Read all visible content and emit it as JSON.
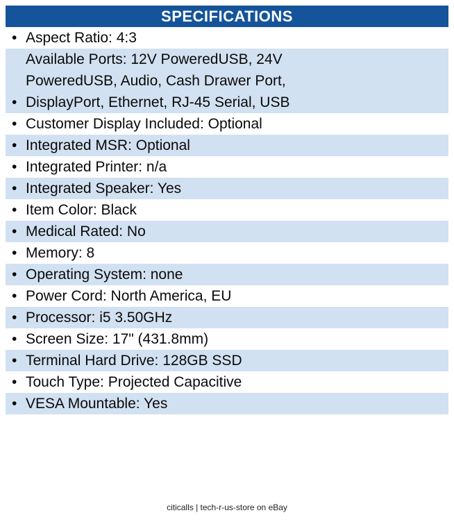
{
  "header": {
    "title": "SPECIFICATIONS"
  },
  "colors": {
    "header_bg": "#15549B",
    "header_text": "#FFFFFF",
    "row_bg": "#FFFFFF",
    "row_alt_bg": "#D2E1F1",
    "text": "#0A0A0A"
  },
  "table": {
    "rows": [
      {
        "bullet": "•",
        "shaded": false,
        "lines": [
          "Aspect Ratio: 4:3"
        ]
      },
      {
        "bullet": "•",
        "shaded": true,
        "lines": [
          "Available Ports: 12V PoweredUSB, 24V",
          "PoweredUSB, Audio, Cash Drawer Port,",
          "DisplayPort, Ethernet, RJ-45 Serial, USB"
        ]
      },
      {
        "bullet": "•",
        "shaded": false,
        "lines": [
          "Customer Display Included: Optional"
        ]
      },
      {
        "bullet": "•",
        "shaded": true,
        "lines": [
          "Integrated MSR: Optional"
        ]
      },
      {
        "bullet": "•",
        "shaded": false,
        "lines": [
          "Integrated Printer: n/a"
        ]
      },
      {
        "bullet": "•",
        "shaded": true,
        "lines": [
          "Integrated Speaker: Yes"
        ]
      },
      {
        "bullet": "•",
        "shaded": false,
        "lines": [
          "Item Color: Black"
        ]
      },
      {
        "bullet": "•",
        "shaded": true,
        "lines": [
          "Medical Rated: No"
        ]
      },
      {
        "bullet": "•",
        "shaded": false,
        "lines": [
          "Memory: 8"
        ]
      },
      {
        "bullet": "•",
        "shaded": true,
        "lines": [
          "Operating System: none"
        ]
      },
      {
        "bullet": "•",
        "shaded": false,
        "lines": [
          "Power Cord: North America, EU"
        ]
      },
      {
        "bullet": "•",
        "shaded": true,
        "lines": [
          "Processor: i5 3.50GHz"
        ]
      },
      {
        "bullet": "•",
        "shaded": false,
        "lines": [
          "Screen Size: 17\" (431.8mm)"
        ]
      },
      {
        "bullet": "•",
        "shaded": true,
        "lines": [
          "Terminal Hard Drive: 128GB SSD"
        ]
      },
      {
        "bullet": "•",
        "shaded": false,
        "lines": [
          "Touch Type: Projected Capacitive"
        ]
      },
      {
        "bullet": "•",
        "shaded": true,
        "lines": [
          "VESA Mountable: Yes"
        ]
      }
    ]
  },
  "footer": {
    "text": "citicalls | tech-r-us-store on eBay"
  }
}
